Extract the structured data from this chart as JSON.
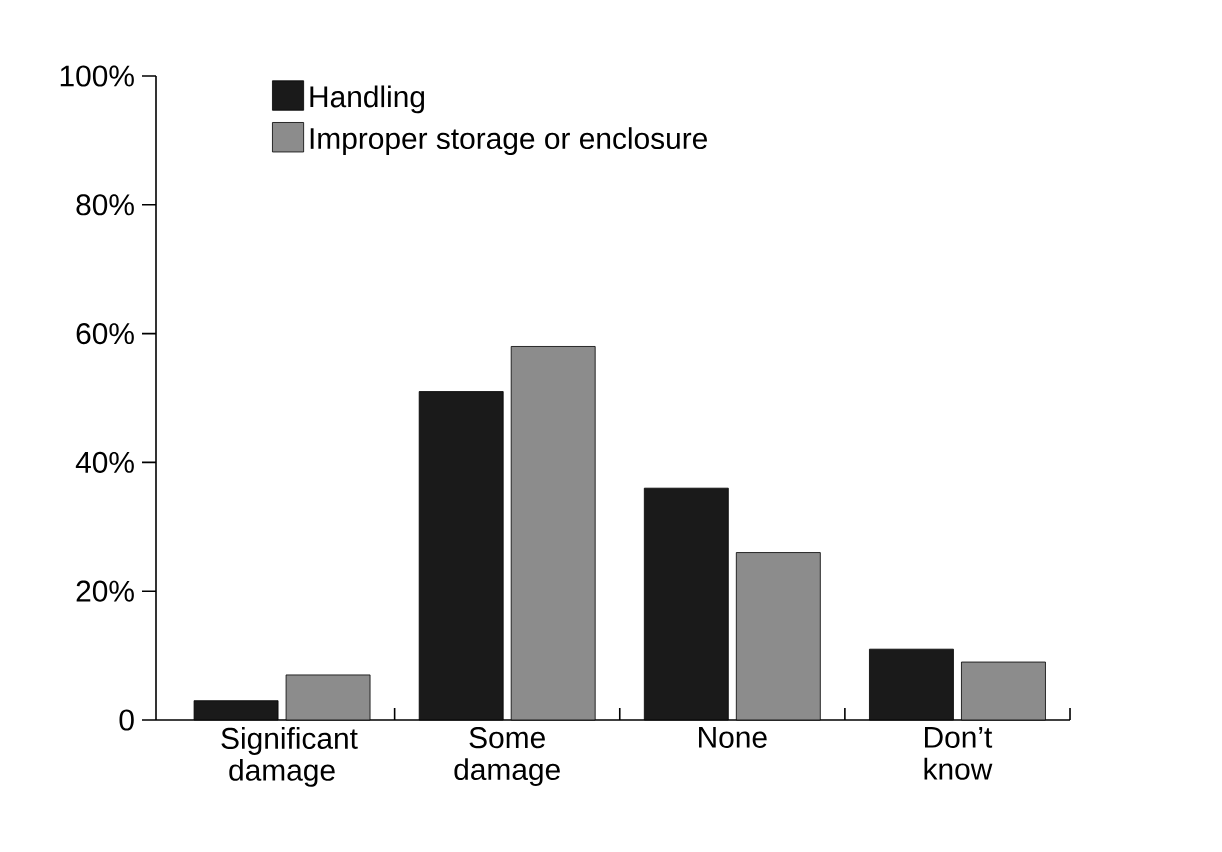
{
  "chart_data": {
    "type": "bar",
    "categories": [
      "Significant damage",
      "Some damage",
      "None",
      "Don’t know"
    ],
    "series": [
      {
        "name": "Handling",
        "color": "#1a1a1a",
        "values": [
          3,
          51,
          36,
          11
        ]
      },
      {
        "name": "Improper storage or enclosure",
        "color": "#8c8c8c",
        "values": [
          7,
          58,
          26,
          9
        ]
      }
    ],
    "ylim": [
      0,
      100
    ],
    "yticks": [
      0,
      {
        "value": 20,
        "label": "20%"
      },
      {
        "value": 40,
        "label": "40%"
      },
      {
        "value": 60,
        "label": "60%"
      },
      {
        "value": 80,
        "label": "80%"
      },
      {
        "value": 100,
        "label": "100%"
      }
    ],
    "legend": "top left",
    "grid": false
  }
}
